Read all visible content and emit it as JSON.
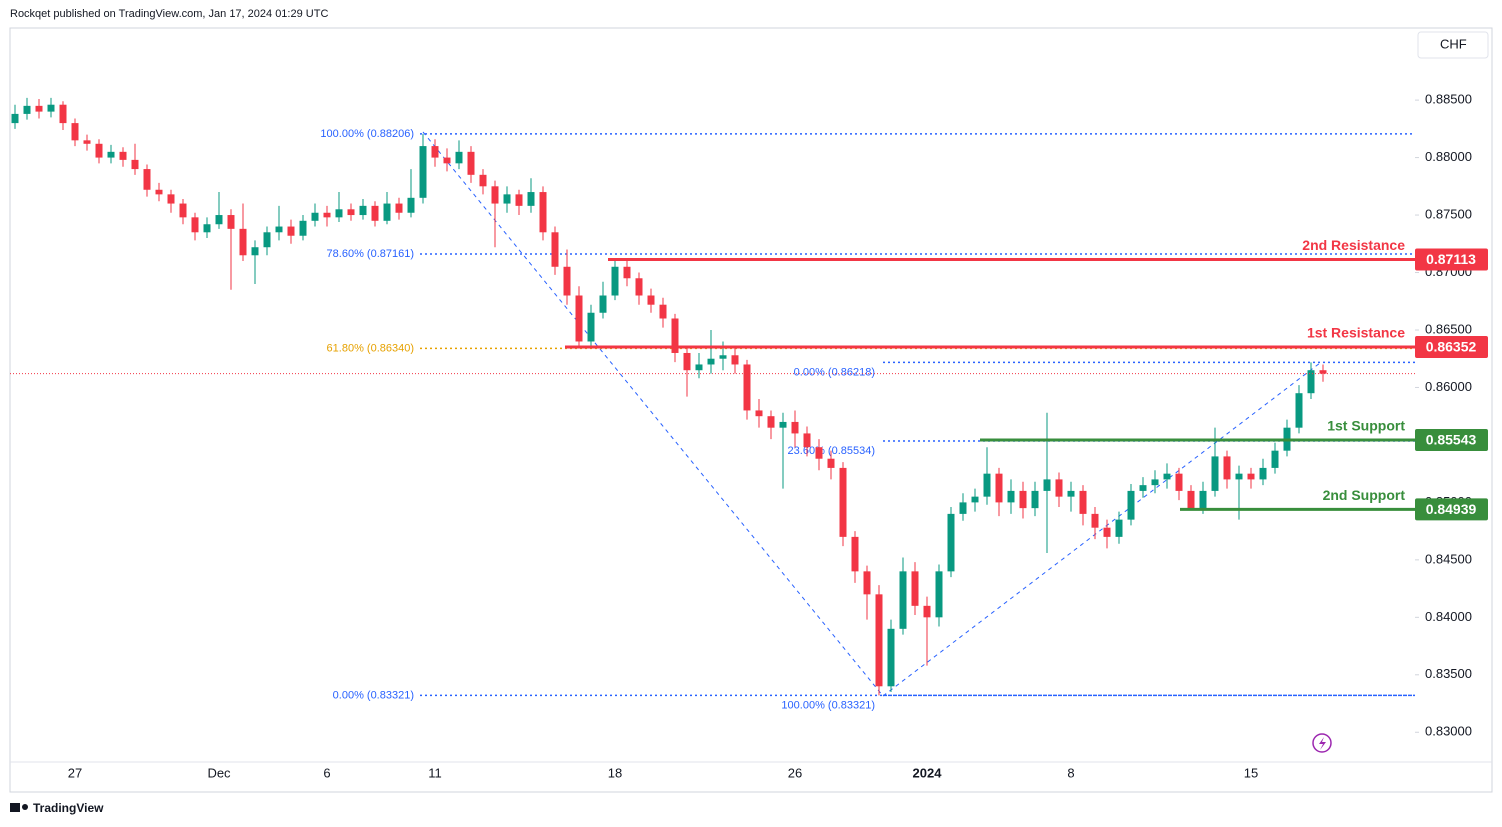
{
  "header": "Rockqet published on TradingView.com, Jan 17, 2024 01:29 UTC",
  "footer": "TradingView",
  "chart_data": {
    "type": "candlestick",
    "currency": "CHF",
    "up_color": "#089981",
    "down_color": "#f23645",
    "categories": [
      null,
      null,
      null,
      null,
      null,
      "27",
      null,
      null,
      null,
      null,
      null,
      null,
      null,
      null,
      null,
      null,
      null,
      "Dec",
      null,
      null,
      null,
      null,
      null,
      null,
      null,
      null,
      "6",
      null,
      null,
      null,
      null,
      null,
      null,
      null,
      null,
      "11",
      null,
      null,
      null,
      null,
      null,
      null,
      null,
      null,
      null,
      null,
      null,
      null,
      null,
      null,
      "18",
      null,
      null,
      null,
      null,
      null,
      null,
      null,
      null,
      null,
      null,
      null,
      null,
      null,
      null,
      "26",
      null,
      null,
      null,
      null,
      null,
      null,
      null,
      null,
      null,
      null,
      "2024",
      null,
      null,
      null,
      null,
      null,
      null,
      null,
      null,
      null,
      null,
      null,
      "8",
      null,
      null,
      null,
      null,
      null,
      null,
      null,
      null,
      null,
      null,
      null,
      null,
      null,
      null,
      "15",
      null,
      null,
      null,
      null,
      null,
      null
    ],
    "open": [
      0.883,
      0.8838,
      0.8845,
      0.884,
      0.8846,
      0.883,
      0.8815,
      0.8812,
      0.88,
      0.8805,
      0.8798,
      0.879,
      0.8772,
      0.8768,
      0.876,
      0.8748,
      0.8735,
      0.8742,
      0.875,
      0.8738,
      0.8715,
      0.8722,
      0.8735,
      0.874,
      0.8732,
      0.8745,
      0.8752,
      0.8748,
      0.8755,
      0.875,
      0.8758,
      0.8745,
      0.876,
      0.8752,
      0.8765,
      0.881,
      0.88,
      0.8795,
      0.8805,
      0.8785,
      0.8775,
      0.876,
      0.8768,
      0.8758,
      0.877,
      0.8735,
      0.8705,
      0.868,
      0.864,
      0.8665,
      0.868,
      0.8705,
      0.8695,
      0.868,
      0.8672,
      0.866,
      0.863,
      0.8615,
      0.862,
      0.8625,
      0.8628,
      0.862,
      0.858,
      0.8575,
      0.8565,
      0.857,
      0.856,
      0.8548,
      0.8538,
      0.853,
      0.847,
      0.844,
      0.842,
      0.834,
      0.839,
      0.844,
      0.841,
      0.84,
      0.844,
      0.849,
      0.85,
      0.8505,
      0.8525,
      0.85,
      0.851,
      0.8495,
      0.851,
      0.852,
      0.8505,
      0.851,
      0.849,
      0.8478,
      0.847,
      0.8485,
      0.851,
      0.8515,
      0.852,
      0.8525,
      0.851,
      0.8495,
      0.851,
      0.854,
      0.852,
      0.8525,
      0.852,
      0.853,
      0.8545,
      0.8565,
      0.8595,
      0.8615
    ],
    "high": [
      0.8846,
      0.8852,
      0.8851,
      0.8852,
      0.8849,
      0.8834,
      0.882,
      0.8816,
      0.8811,
      0.8809,
      0.8812,
      0.8794,
      0.8778,
      0.8772,
      0.8764,
      0.8752,
      0.8748,
      0.877,
      0.8755,
      0.876,
      0.8728,
      0.874,
      0.8758,
      0.8746,
      0.875,
      0.876,
      0.8758,
      0.877,
      0.876,
      0.8764,
      0.8762,
      0.877,
      0.8765,
      0.879,
      0.88206,
      0.8816,
      0.8808,
      0.8815,
      0.881,
      0.879,
      0.878,
      0.8775,
      0.8772,
      0.8782,
      0.8775,
      0.874,
      0.872,
      0.8688,
      0.8672,
      0.8692,
      0.87113,
      0.871,
      0.87,
      0.8686,
      0.8678,
      0.8664,
      0.8636,
      0.863,
      0.865,
      0.864,
      0.8634,
      0.8624,
      0.859,
      0.858,
      0.8578,
      0.858,
      0.8566,
      0.8555,
      0.8545,
      0.8535,
      0.8475,
      0.8445,
      0.8428,
      0.8398,
      0.8452,
      0.8448,
      0.8418,
      0.8446,
      0.8496,
      0.8508,
      0.8512,
      0.8548,
      0.853,
      0.852,
      0.8518,
      0.8518,
      0.8578,
      0.8526,
      0.8518,
      0.8515,
      0.8496,
      0.8485,
      0.8492,
      0.8516,
      0.8522,
      0.8528,
      0.8534,
      0.853,
      0.8515,
      0.8518,
      0.8565,
      0.8545,
      0.8532,
      0.853,
      0.8538,
      0.8552,
      0.8572,
      0.8602,
      0.86218,
      0.862
    ],
    "low": [
      0.8825,
      0.8833,
      0.8834,
      0.8835,
      0.8824,
      0.881,
      0.8806,
      0.8795,
      0.8795,
      0.8792,
      0.8785,
      0.8766,
      0.8762,
      0.8752,
      0.8742,
      0.8728,
      0.873,
      0.8738,
      0.8685,
      0.871,
      0.869,
      0.8715,
      0.8728,
      0.8725,
      0.8728,
      0.874,
      0.874,
      0.8744,
      0.8745,
      0.8746,
      0.874,
      0.8742,
      0.8746,
      0.8748,
      0.876,
      0.8792,
      0.8788,
      0.879,
      0.8778,
      0.8768,
      0.8722,
      0.8752,
      0.875,
      0.8752,
      0.8728,
      0.8698,
      0.8672,
      0.8634,
      0.8636,
      0.866,
      0.8676,
      0.8688,
      0.8672,
      0.8665,
      0.8652,
      0.8622,
      0.8592,
      0.8608,
      0.8612,
      0.8615,
      0.8612,
      0.8572,
      0.8565,
      0.8555,
      0.8512,
      0.8548,
      0.854,
      0.8528,
      0.852,
      0.8462,
      0.843,
      0.8398,
      0.83321,
      0.8335,
      0.8385,
      0.8402,
      0.8358,
      0.8392,
      0.8435,
      0.8484,
      0.8492,
      0.8498,
      0.8488,
      0.849,
      0.8486,
      0.8488,
      0.8456,
      0.8496,
      0.8492,
      0.848,
      0.8468,
      0.846,
      0.8464,
      0.848,
      0.8504,
      0.8508,
      0.8512,
      0.8502,
      0.84939,
      0.849,
      0.8505,
      0.8512,
      0.8485,
      0.8512,
      0.8515,
      0.8525,
      0.854,
      0.856,
      0.859,
      0.8605
    ],
    "close": [
      0.8838,
      0.8845,
      0.884,
      0.8846,
      0.883,
      0.8815,
      0.8812,
      0.88,
      0.8805,
      0.8798,
      0.879,
      0.8772,
      0.8768,
      0.876,
      0.8748,
      0.8735,
      0.8742,
      0.875,
      0.8738,
      0.8715,
      0.8722,
      0.8735,
      0.874,
      0.8732,
      0.8745,
      0.8752,
      0.8748,
      0.8755,
      0.875,
      0.8758,
      0.8745,
      0.876,
      0.8752,
      0.8765,
      0.881,
      0.88,
      0.8795,
      0.8805,
      0.8785,
      0.8775,
      0.876,
      0.8768,
      0.8758,
      0.877,
      0.8735,
      0.8705,
      0.868,
      0.864,
      0.8665,
      0.868,
      0.8705,
      0.8695,
      0.868,
      0.8672,
      0.866,
      0.863,
      0.8615,
      0.862,
      0.8625,
      0.8628,
      0.862,
      0.858,
      0.8575,
      0.8565,
      0.857,
      0.856,
      0.8548,
      0.8538,
      0.853,
      0.847,
      0.844,
      0.842,
      0.834,
      0.839,
      0.844,
      0.841,
      0.84,
      0.844,
      0.849,
      0.85,
      0.8505,
      0.8525,
      0.85,
      0.851,
      0.8495,
      0.851,
      0.852,
      0.8505,
      0.851,
      0.849,
      0.8478,
      0.847,
      0.8485,
      0.851,
      0.8515,
      0.852,
      0.8525,
      0.851,
      0.8495,
      0.851,
      0.854,
      0.852,
      0.8525,
      0.852,
      0.853,
      0.8545,
      0.8565,
      0.8595,
      0.8615,
      0.8612
    ],
    "ylim": [
      0.8275,
      0.8911
    ],
    "yticks": [
      {
        "value": 0.83,
        "label": "0.83000"
      },
      {
        "value": 0.835,
        "label": "0.83500"
      },
      {
        "value": 0.84,
        "label": "0.84000"
      },
      {
        "value": 0.845,
        "label": "0.84500"
      },
      {
        "value": 0.85,
        "label": "0.85000"
      },
      {
        "value": 0.855,
        "label": "0.85500"
      },
      {
        "value": 0.86,
        "label": "0.86000"
      },
      {
        "value": 0.865,
        "label": "0.86500"
      },
      {
        "value": 0.87,
        "label": "0.87000"
      },
      {
        "value": 0.875,
        "label": "0.87500"
      },
      {
        "value": 0.88,
        "label": "0.88000"
      },
      {
        "value": 0.885,
        "label": "0.88500"
      }
    ],
    "levels": [
      {
        "label": "2nd Resistance",
        "value": 0.87113,
        "color": "#f23645"
      },
      {
        "label": "1st Resistance",
        "value": 0.86352,
        "color": "#f23645"
      },
      {
        "label": "1st Support",
        "value": 0.85543,
        "color": "#388e3c"
      },
      {
        "label": "2nd Support",
        "value": 0.84939,
        "color": "#388e3c"
      }
    ],
    "fib_retracements": [
      {
        "color": "#2962ff",
        "levels": [
          {
            "label": "100.00% (0.88206)",
            "value": 0.88206
          },
          {
            "label": "78.60% (0.87161)",
            "value": 0.87161
          },
          {
            "label": "61.80% (0.86340)",
            "value": 0.8634,
            "color": "#e6a100"
          },
          {
            "label": "0.00% (0.83321)",
            "value": 0.83321
          }
        ]
      },
      {
        "color": "#2962ff",
        "levels": [
          {
            "label": "0.00% (0.86218)",
            "value": 0.86218
          },
          {
            "label": "23.60% (0.85534)",
            "value": 0.85534
          },
          {
            "label": "100.00% (0.83321)",
            "value": 0.83321
          }
        ]
      }
    ]
  }
}
